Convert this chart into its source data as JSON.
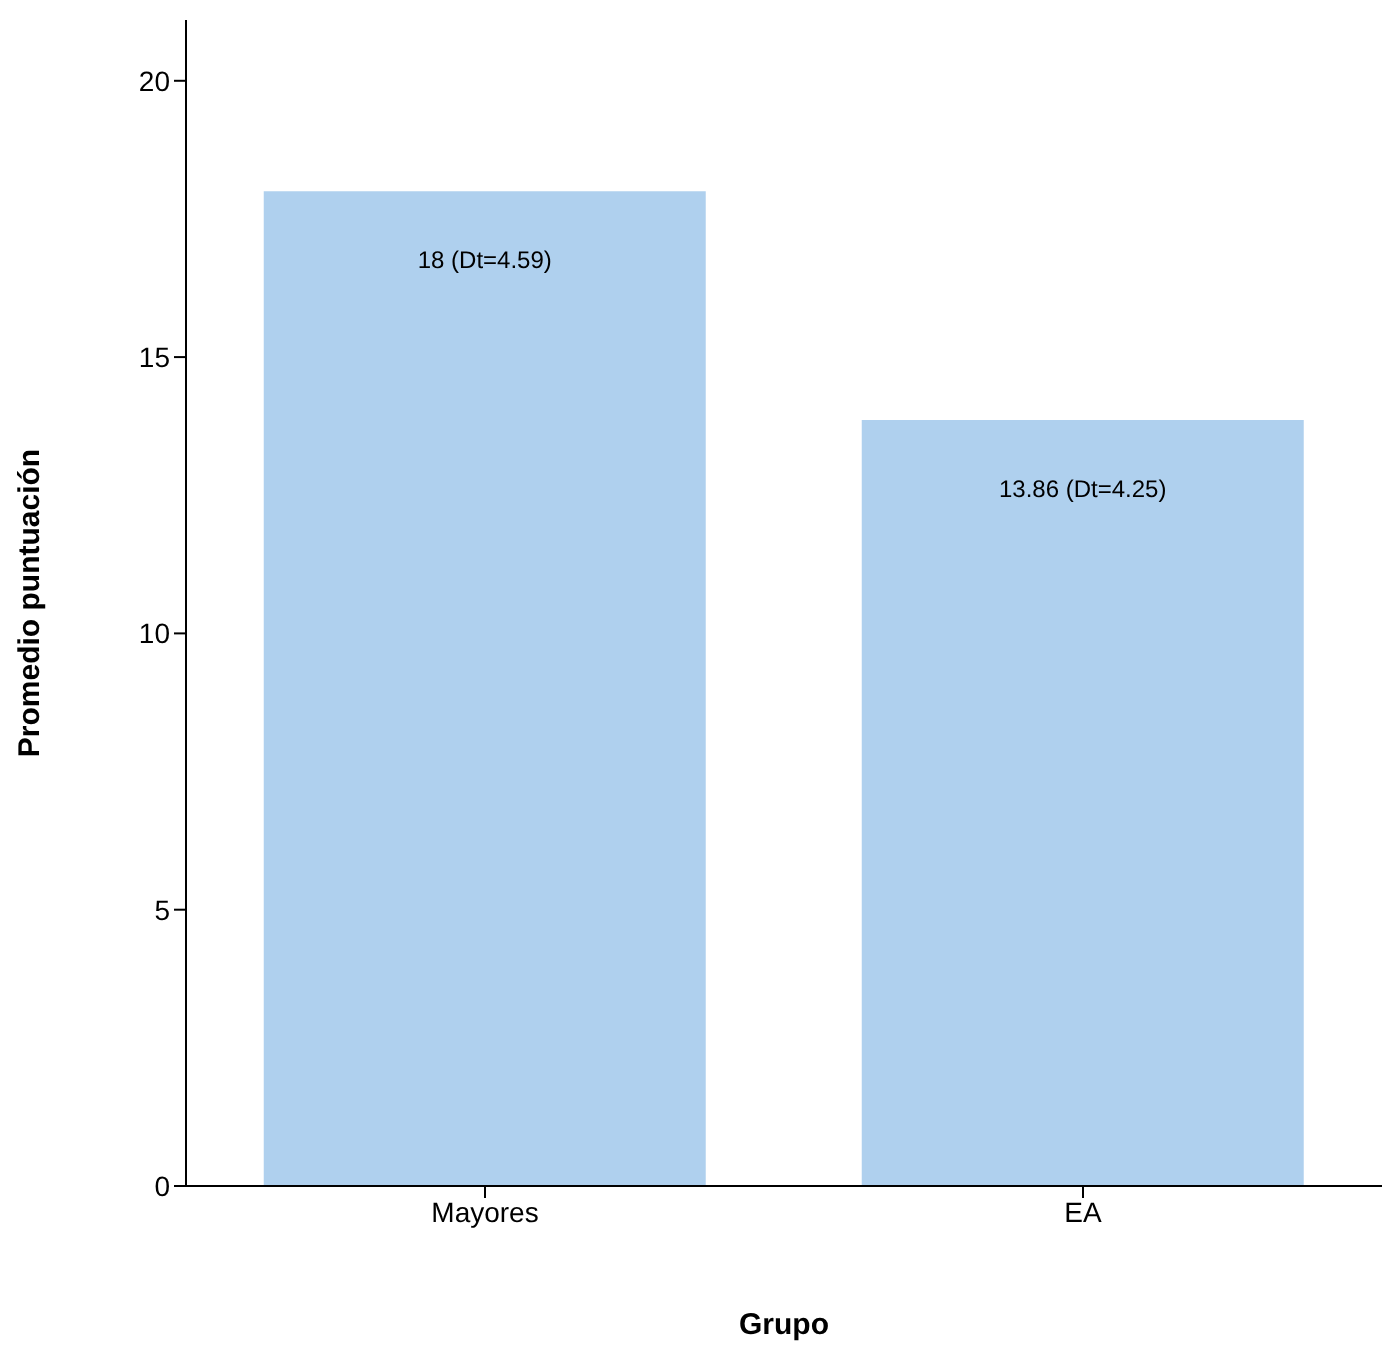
{
  "chart_data": {
    "type": "bar",
    "xlabel": "Grupo",
    "ylabel": "Promedio puntuación",
    "categories": [
      "Mayores",
      "EA"
    ],
    "values": [
      18,
      13.86
    ],
    "value_labels": [
      "18 (Dt=4.59)",
      "13.86 (Dt=4.25)"
    ],
    "color": "#afd0ee",
    "ylim": [
      0,
      21.1
    ],
    "yticks": [
      0,
      5,
      10,
      15,
      20
    ],
    "grid": false,
    "legend": false
  }
}
